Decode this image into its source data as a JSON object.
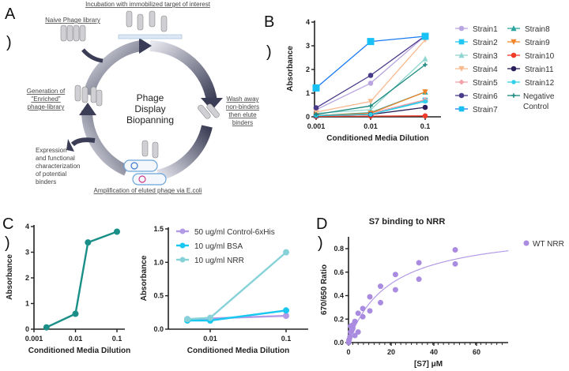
{
  "panel_labels": {
    "A": "A",
    "B": "B",
    "C": "C",
    "D": "D",
    "paren": ")"
  },
  "diagram": {
    "center_title": [
      "Phage",
      "Display",
      "Biopanning"
    ],
    "step_incubation": "Incubation with immobilized target of interest",
    "step_naive": "Naive Phage library",
    "step_wash": [
      "Wash away",
      "non-binders",
      "then elute",
      "binders"
    ],
    "step_amplification": "Amplification of eluted phage via E.coli",
    "step_generation": [
      "Generation of",
      "\"Enriched\"",
      "phage-library"
    ],
    "step_expression": [
      "Expression",
      "and functional",
      "characterization",
      "of potential",
      "binders"
    ]
  },
  "chart_data": [
    {
      "id": "B",
      "type": "line",
      "title": "",
      "xlabel": "Conditioned Media Dilution",
      "ylabel": "Absorbance",
      "x": [
        0.001,
        0.01,
        0.1
      ],
      "xscale": "log",
      "xticks": [
        "0.001",
        "0.01",
        "0.1"
      ],
      "ylim": [
        0,
        4
      ],
      "yticks": [
        "0",
        "1",
        "2",
        "3",
        "4"
      ],
      "legend": "right",
      "series": [
        {
          "name": "Strain1",
          "color": "#b9a5e0",
          "marker": "circle",
          "values": [
            0.3,
            1.42,
            3.42
          ]
        },
        {
          "name": "Strain2",
          "color": "#1ec8f0",
          "marker": "square",
          "values": [
            0.05,
            0.1,
            0.7
          ]
        },
        {
          "name": "Strain3",
          "color": "#8fd6d0",
          "marker": "triangle",
          "values": [
            0.15,
            0.3,
            2.45
          ]
        },
        {
          "name": "Strain4",
          "color": "#f8b98f",
          "marker": "triangle-down",
          "values": [
            0.2,
            0.65,
            3.25
          ]
        },
        {
          "name": "Strain5",
          "color": "#f4a0a8",
          "marker": "diamond",
          "values": [
            0.05,
            0.15,
            0.72
          ]
        },
        {
          "name": "Strain6",
          "color": "#4a3a8a",
          "marker": "circle",
          "values": [
            0.38,
            1.75,
            3.42
          ]
        },
        {
          "name": "Strain7",
          "color": "#1a7bf0",
          "marker": "square",
          "values": [
            1.22,
            3.18,
            3.4
          ]
        },
        {
          "name": "Strain8",
          "color": "#2aa5a0",
          "marker": "triangle",
          "values": [
            0.05,
            0.18,
            1.05
          ]
        },
        {
          "name": "Strain9",
          "color": "#f0852a",
          "marker": "triangle-down",
          "values": [
            0.05,
            0.15,
            1.05
          ]
        },
        {
          "name": "Strain10",
          "color": "#f03a2a",
          "marker": "circle",
          "values": [
            0.02,
            0.03,
            0.04
          ]
        },
        {
          "name": "Strain11",
          "color": "#2a1f5a",
          "marker": "circle",
          "values": [
            0.05,
            0.1,
            0.4
          ]
        },
        {
          "name": "Strain12",
          "color": "#30d0e8",
          "marker": "star",
          "values": [
            0.05,
            0.1,
            0.65
          ]
        },
        {
          "name": "Negative Control",
          "color": "#1a8a80",
          "marker": "plus",
          "values": [
            0.1,
            0.46,
            2.2
          ]
        }
      ]
    },
    {
      "id": "C-left",
      "type": "line",
      "title": "",
      "xlabel": "Conditioned Media Dilution",
      "ylabel": "Absorbance",
      "xscale": "log",
      "xticks": [
        "0.001",
        "0.01",
        "0.1"
      ],
      "ylim": [
        0,
        4
      ],
      "yticks": [
        "0",
        "1",
        "2",
        "3",
        "4"
      ],
      "series": [
        {
          "name": "",
          "color": "#1a8f88",
          "x": [
            0.002,
            0.01,
            0.02,
            0.1
          ],
          "values": [
            0.07,
            0.6,
            3.38,
            3.8
          ]
        }
      ]
    },
    {
      "id": "C-right",
      "type": "line",
      "title": "",
      "xlabel": "Conditioned Media Dilution",
      "ylabel": "Absorbance",
      "xscale": "log",
      "x": [
        0.005,
        0.01,
        0.1
      ],
      "xticks": [
        "0.01",
        "0.1"
      ],
      "ylim": [
        0,
        1.5
      ],
      "yticks": [
        "0.0",
        "0.5",
        "1.0",
        "1.5"
      ],
      "legend": "top-left",
      "series": [
        {
          "name": "50 ug/ml Control-6xHis",
          "color": "#b39ae6",
          "values": [
            0.15,
            0.16,
            0.2
          ]
        },
        {
          "name": "10 ug/ml BSA",
          "color": "#18c8f0",
          "values": [
            0.13,
            0.13,
            0.28
          ]
        },
        {
          "name": "10 ug/ml NRR",
          "color": "#86d2d8",
          "values": [
            0.15,
            0.17,
            1.15
          ]
        }
      ]
    },
    {
      "id": "D",
      "type": "scatter",
      "title": "S7 binding to NRR",
      "xlabel": "[S7] μM",
      "ylabel": "670/650 Ratio",
      "xlim": [
        0,
        75
      ],
      "xticks": [
        "0",
        "20",
        "40",
        "60"
      ],
      "ylim": [
        0,
        0.8
      ],
      "yticks": [
        "0.0",
        "0.2",
        "0.4",
        "0.6",
        "0.8"
      ],
      "legend": "top-right",
      "series": [
        {
          "name": "WT NRR",
          "color": "#a98be0",
          "x": [
            0.1,
            0.2,
            0.4,
            0.7,
            1,
            1,
            1.5,
            2,
            2,
            3,
            3,
            4.5,
            4.5,
            6.7,
            6.7,
            10,
            10,
            15,
            15,
            22,
            22,
            33,
            33,
            50,
            50
          ],
          "values": [
            0.0,
            0.02,
            0.03,
            0.05,
            0.09,
            0.14,
            0.1,
            0.15,
            0.12,
            0.18,
            0.06,
            0.25,
            0.09,
            0.29,
            0.22,
            0.39,
            0.27,
            0.48,
            0.34,
            0.58,
            0.45,
            0.68,
            0.54,
            0.79,
            0.67
          ]
        }
      ],
      "fit": {
        "model": "one-site binding",
        "Bmax": 0.98,
        "Kd": 19
      }
    }
  ]
}
